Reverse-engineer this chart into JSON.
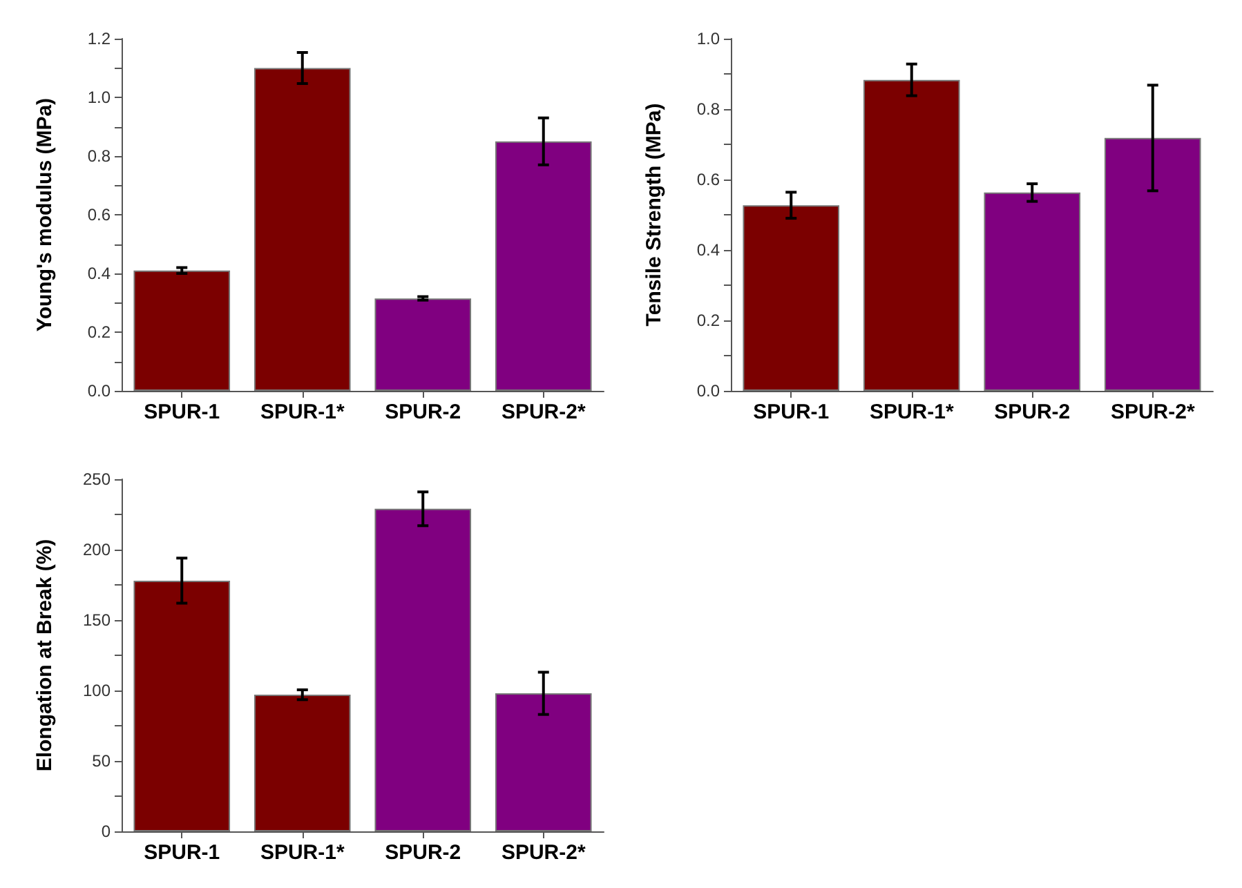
{
  "chart_data": [
    {
      "type": "bar",
      "ylabel": "Young's modulus (MPa)",
      "categories": [
        "SPUR-1",
        "SPUR-1*",
        "SPUR-2",
        "SPUR-2*"
      ],
      "values": [
        0.41,
        1.1,
        0.315,
        0.85
      ],
      "colors": [
        "#7b0000",
        "#7b0000",
        "#800080",
        "#800080"
      ],
      "errors": [
        0.01,
        0.053,
        0.006,
        0.08
      ],
      "ylim": [
        0,
        1.2
      ],
      "yticks": [
        {
          "value": 0,
          "label": "0.0"
        },
        {
          "value": 0.1,
          "label": null
        },
        {
          "value": 0.2,
          "label": "0.2"
        },
        {
          "value": 0.3,
          "label": null
        },
        {
          "value": 0.4,
          "label": "0.4"
        },
        {
          "value": 0.5,
          "label": null
        },
        {
          "value": 0.6,
          "label": "0.6"
        },
        {
          "value": 0.7,
          "label": null
        },
        {
          "value": 0.8,
          "label": "0.8"
        },
        {
          "value": 0.9,
          "label": null
        },
        {
          "value": 1.0,
          "label": "1.0"
        },
        {
          "value": 1.1,
          "label": null
        },
        {
          "value": 1.2,
          "label": "1.2"
        }
      ],
      "grid": false
    },
    {
      "type": "bar",
      "ylabel": "Tensile Strength (MPa)",
      "categories": [
        "SPUR-1",
        "SPUR-1*",
        "SPUR-2",
        "SPUR-2*"
      ],
      "values": [
        0.527,
        0.883,
        0.563,
        0.718
      ],
      "colors": [
        "#7b0000",
        "#7b0000",
        "#800080",
        "#800080"
      ],
      "errors": [
        0.037,
        0.045,
        0.025,
        0.15
      ],
      "ylim": [
        0,
        1.0
      ],
      "yticks": [
        {
          "value": 0,
          "label": "0.0"
        },
        {
          "value": 0.1,
          "label": null
        },
        {
          "value": 0.2,
          "label": "0.2"
        },
        {
          "value": 0.3,
          "label": null
        },
        {
          "value": 0.4,
          "label": "0.4"
        },
        {
          "value": 0.5,
          "label": null
        },
        {
          "value": 0.6,
          "label": "0.6"
        },
        {
          "value": 0.7,
          "label": null
        },
        {
          "value": 0.8,
          "label": "0.8"
        },
        {
          "value": 0.9,
          "label": null
        },
        {
          "value": 1.0,
          "label": "1.0"
        }
      ],
      "grid": false
    },
    {
      "type": "bar",
      "ylabel": "Elongation at Break (%)",
      "categories": [
        "SPUR-1",
        "SPUR-1*",
        "SPUR-2",
        "SPUR-2*"
      ],
      "values": [
        178,
        97,
        229,
        98
      ],
      "colors": [
        "#7b0000",
        "#7b0000",
        "#800080",
        "#800080"
      ],
      "errors": [
        16,
        3.5,
        12,
        15
      ],
      "ylim": [
        0,
        250
      ],
      "yticks": [
        0,
        {
          "value": 25,
          "label": null
        },
        50,
        {
          "value": 75,
          "label": null
        },
        100,
        {
          "value": 125,
          "label": null
        },
        150,
        {
          "value": 175,
          "label": null
        },
        200,
        {
          "value": 225,
          "label": null
        },
        250
      ],
      "grid": false
    }
  ]
}
